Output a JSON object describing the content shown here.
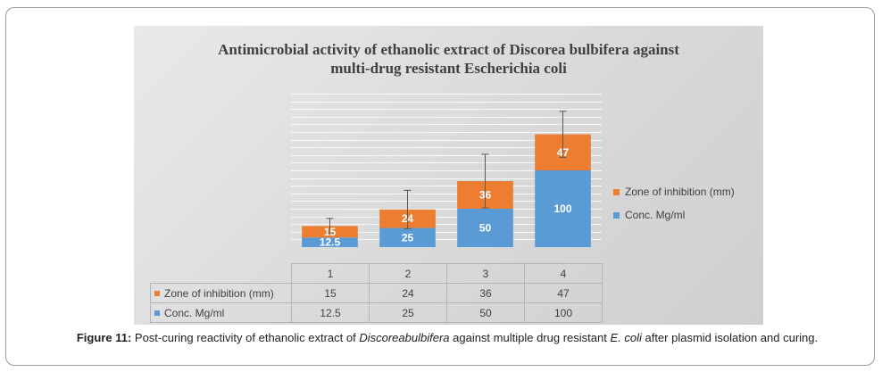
{
  "chart_data": {
    "type": "bar",
    "stacked": true,
    "title": "Antimicrobial activity of ethanolic extract of Discorea bulbifera against multi-drug resistant Escherichia coli",
    "title_lines": [
      "Antimicrobial activity of ethanolic extract of Discorea bulbifera against",
      "multi-drug resistant Escherichia coli"
    ],
    "categories": [
      "1",
      "2",
      "3",
      "4"
    ],
    "series": [
      {
        "name": "Conc. Mg/ml",
        "values": [
          12.5,
          25,
          50,
          100
        ],
        "labels": [
          "12.5",
          "25",
          "50",
          "100"
        ],
        "color": "#5b9bd5"
      },
      {
        "name": "Zone of inhibition (mm)",
        "values": [
          15,
          24,
          36,
          47
        ],
        "labels": [
          "15",
          "24",
          "36",
          "47"
        ],
        "color": "#ed7d31"
      }
    ],
    "error_bars": [
      10,
      25,
      35,
      30
    ],
    "ylim": [
      0,
      200
    ],
    "grid": true,
    "xlabel": "",
    "ylabel": "",
    "legend_position": "right"
  },
  "caption": {
    "label": "Figure 11:",
    "text_1": " Post-curing reactivity of ethanolic extract of ",
    "italic_1": "Discoreabulbifera",
    "text_2": " against multiple drug resistant ",
    "italic_2": "E. coli",
    "text_3": " after plasmid isolation and curing."
  }
}
